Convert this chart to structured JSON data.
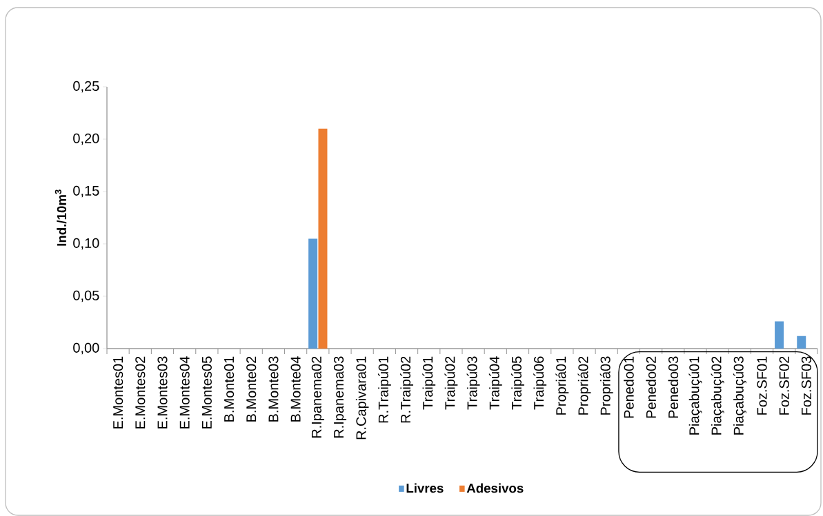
{
  "chart_data": {
    "type": "bar",
    "ylabel": "Ind./10m$^{3}$",
    "categories": [
      "E.Montes01",
      "E.Montes02",
      "E.Montes03",
      "E.Montes04",
      "E.Montes05",
      "B.Monte01",
      "B.Monte02",
      "B.Monte03",
      "B.Monte04",
      "R.Ipanema02",
      "R.Ipanema03",
      "R.Capivara01",
      "R.Traipú01",
      "R.Traipú02",
      "Traipú01",
      "Traipú02",
      "Traipú03",
      "Traipú04",
      "Traipú05",
      "Traipú06",
      "Propriá01",
      "Propriá02",
      "Propriá03",
      "Penedo01",
      "Penedo02",
      "Penedo03",
      "Piaçabuçú01",
      "Piaçabuçú02",
      "Piaçabuçú03",
      "Foz.SF01",
      "Foz.SF02",
      "Foz.SF03"
    ],
    "series": [
      {
        "name": "Livres",
        "color": "#5b9bd5",
        "values": [
          0,
          0,
          0,
          0,
          0,
          0,
          0,
          0,
          0,
          0.105,
          0,
          0,
          0,
          0,
          0,
          0,
          0,
          0,
          0,
          0,
          0,
          0,
          0,
          0,
          0,
          0,
          0,
          0,
          0,
          0,
          0.026,
          0.012
        ]
      },
      {
        "name": "Adesivos",
        "color": "#ed7d31",
        "values": [
          0,
          0,
          0,
          0,
          0,
          0,
          0,
          0,
          0,
          0.21,
          0,
          0,
          0,
          0,
          0,
          0,
          0,
          0,
          0,
          0,
          0,
          0,
          0,
          0,
          0,
          0,
          0,
          0,
          0,
          0,
          0,
          0
        ]
      }
    ],
    "ylim": [
      0,
      0.25
    ],
    "yticks": [
      {
        "value": 0,
        "label": "0,00"
      },
      {
        "value": 0.05,
        "label": "0,05"
      },
      {
        "value": 0.1,
        "label": "0,10"
      },
      {
        "value": 0.15,
        "label": "0,15"
      },
      {
        "value": 0.2,
        "label": "0,20"
      },
      {
        "value": 0.25,
        "label": "0,25"
      }
    ],
    "grid": false,
    "legend": "bottom"
  }
}
